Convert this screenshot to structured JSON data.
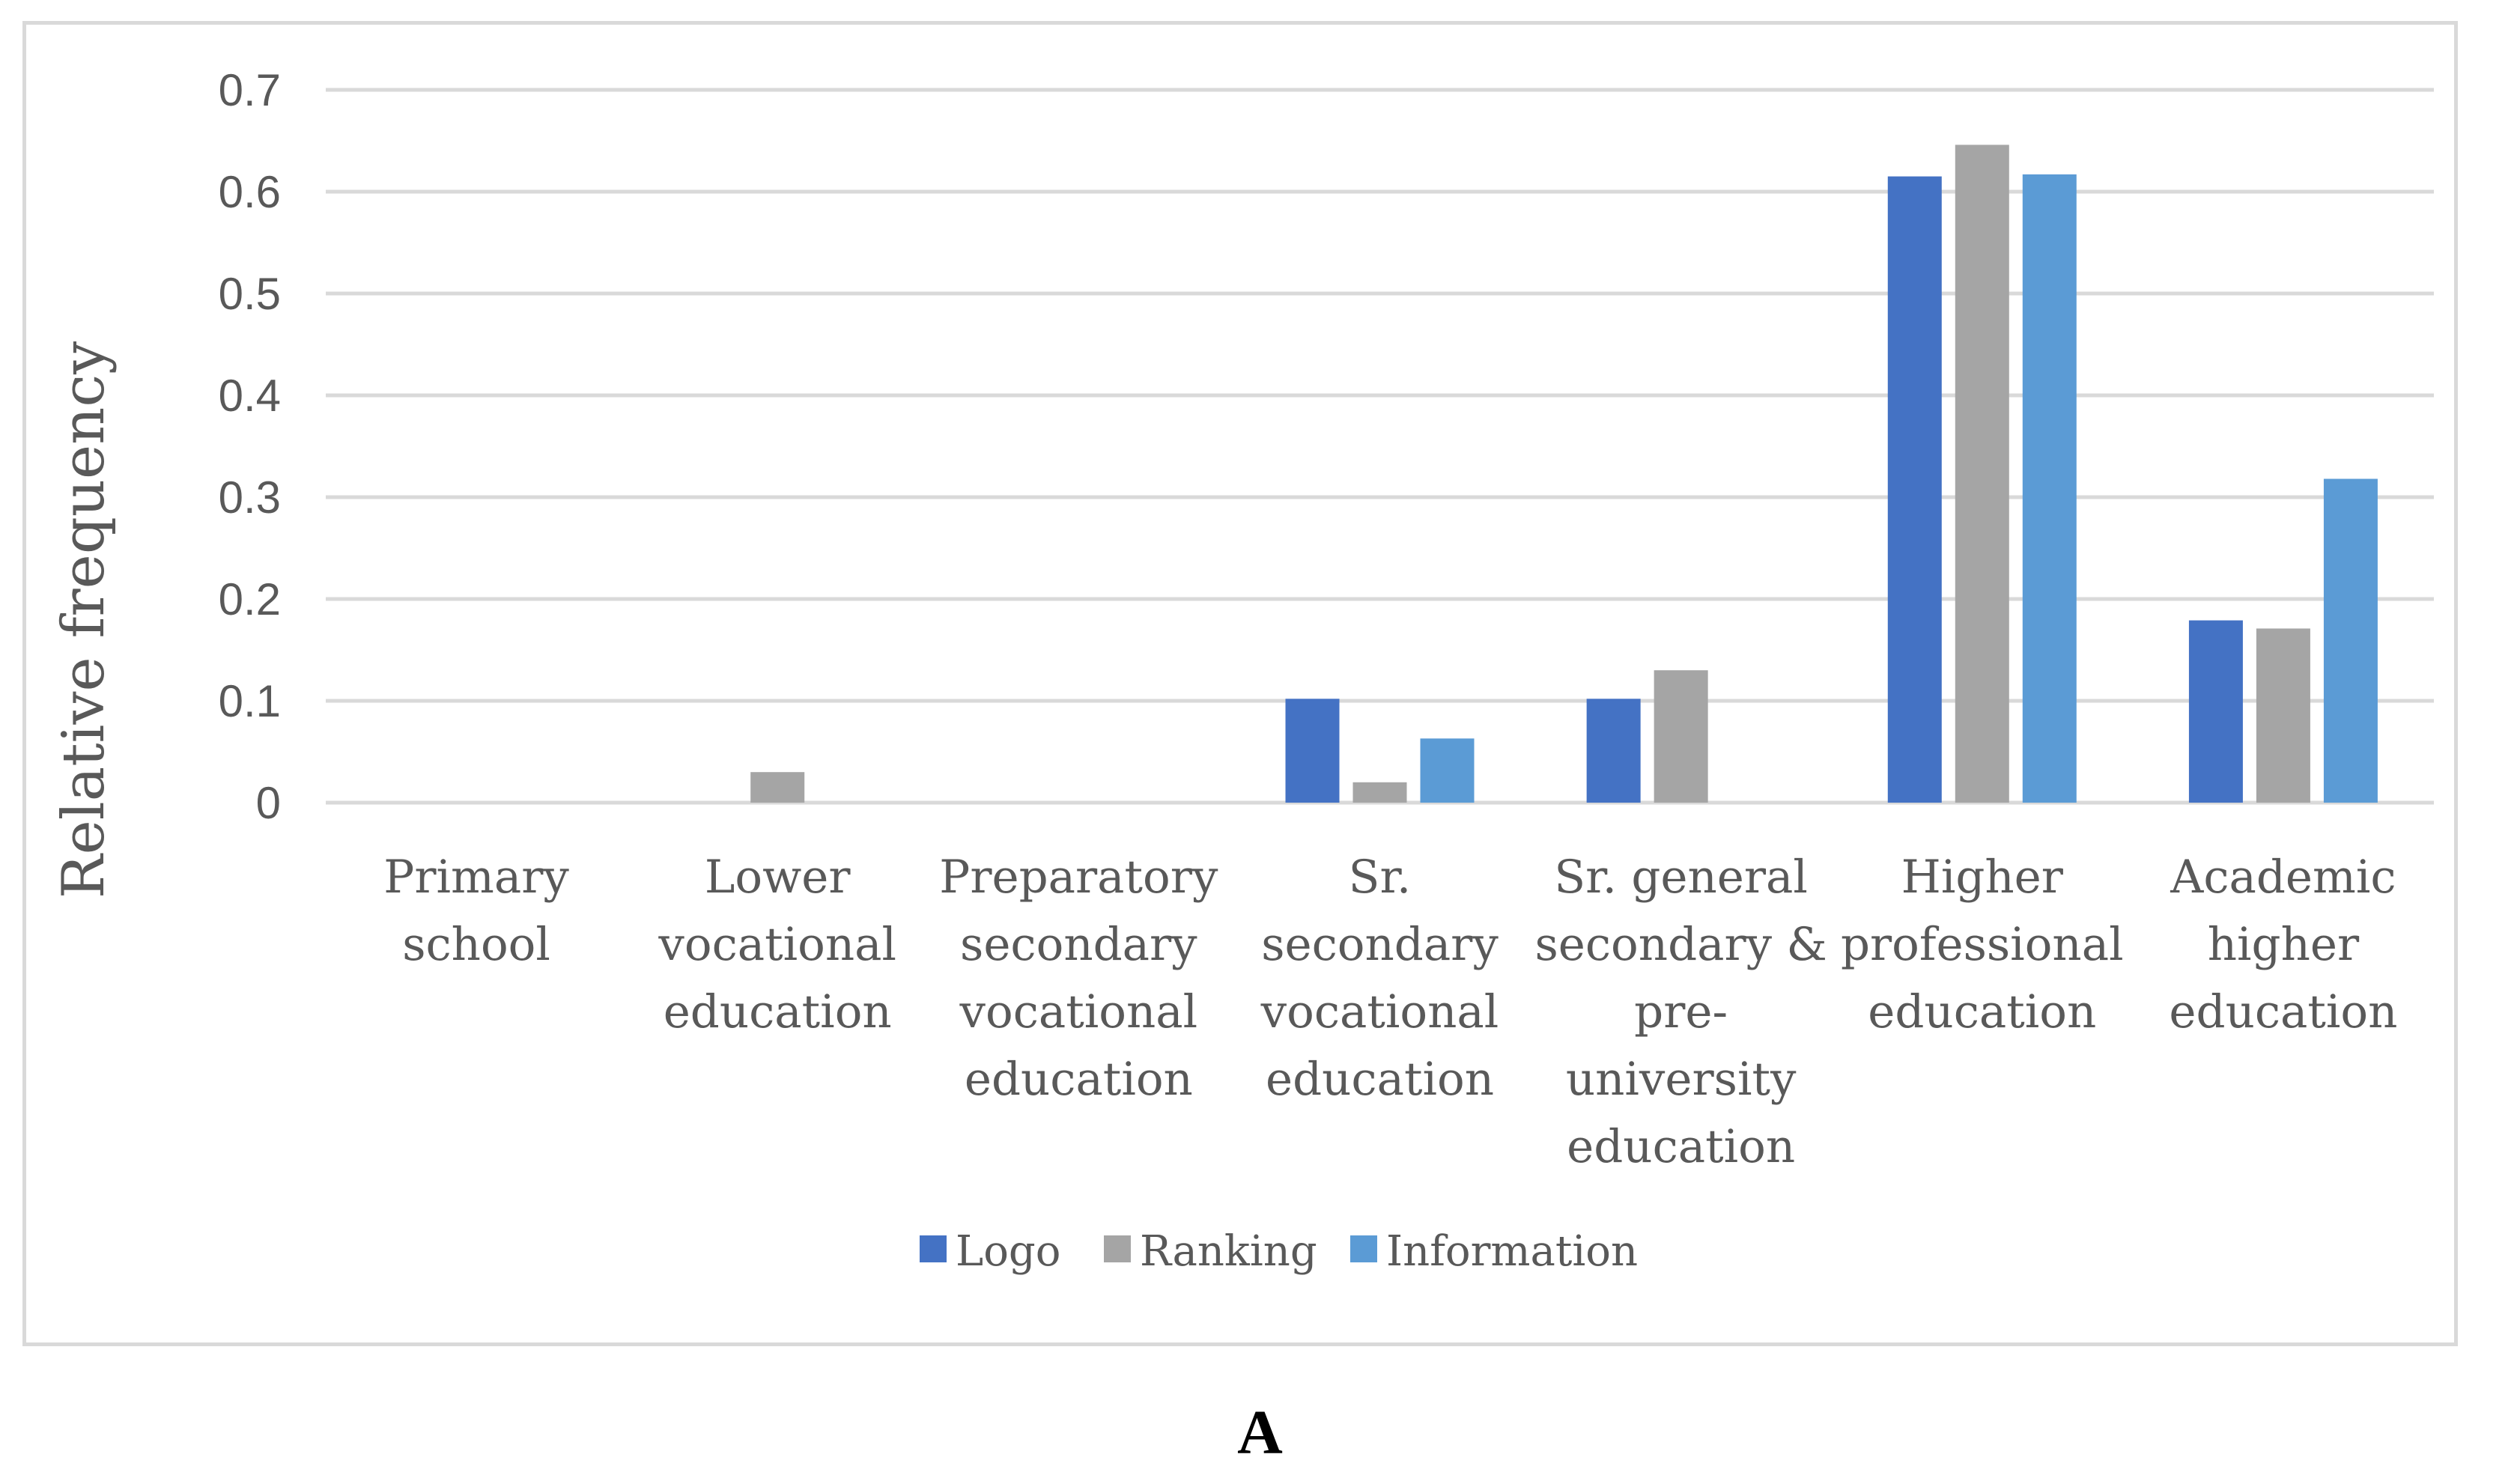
{
  "panel_label": "A",
  "chart_data": {
    "type": "bar",
    "title": "",
    "xlabel": "",
    "ylabel": "Relative frequency",
    "ylim": [
      0,
      0.7
    ],
    "yticks": [
      0,
      0.1,
      0.2,
      0.3,
      0.4,
      0.5,
      0.6,
      0.7
    ],
    "ytick_labels": [
      "0",
      "0.1",
      "0.2",
      "0.3",
      "0.4",
      "0.5",
      "0.6",
      "0.7"
    ],
    "grid": true,
    "legend_position": "bottom",
    "categories": [
      [
        "Primary",
        "school"
      ],
      [
        "Lower",
        "vocational",
        "education"
      ],
      [
        "Preparatory",
        "secondary",
        "vocational",
        "education"
      ],
      [
        "Sr.",
        "secondary",
        "vocational",
        "education"
      ],
      [
        "Sr. general",
        "secondary &",
        "pre-",
        "university",
        "education"
      ],
      [
        "Higher",
        "professional",
        "education"
      ],
      [
        "Academic",
        "higher",
        "education"
      ]
    ],
    "series": [
      {
        "name": "Logo",
        "color": "#4472c4",
        "values": [
          0,
          0,
          0,
          0.102,
          0.102,
          0.615,
          0.179
        ]
      },
      {
        "name": "Ranking",
        "color": "#a5a5a5",
        "values": [
          0,
          0.03,
          0,
          0.02,
          0.13,
          0.646,
          0.171
        ]
      },
      {
        "name": "Information",
        "color": "#5b9bd5",
        "values": [
          0,
          0,
          0,
          0.063,
          0,
          0.617,
          0.318
        ]
      }
    ],
    "gridline_color": "#d9d9d9"
  }
}
